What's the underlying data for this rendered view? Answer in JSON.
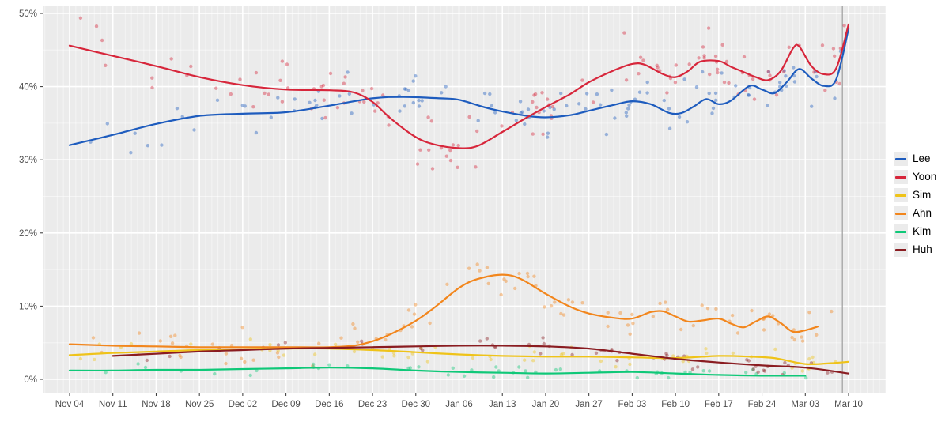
{
  "styles": {
    "background": "#FFFFFF",
    "panel_bg": "#EBEBEB",
    "grid_color": "#FFFFFF",
    "tick_color": "#333333",
    "tick_label_color": "#4D4D4D",
    "event_line_color": "#9B9B9B"
  },
  "legend": {
    "position": "right",
    "items": [
      {
        "label": "Lee",
        "color": "#1E5CBE"
      },
      {
        "label": "Yoon",
        "color": "#D7263B"
      },
      {
        "label": "Sim",
        "color": "#EFC319"
      },
      {
        "label": "Ahn",
        "color": "#F2861D"
      },
      {
        "label": "Kim",
        "color": "#0FC878"
      },
      {
        "label": "Huh",
        "color": "#8A1C21"
      }
    ]
  },
  "chart_data": {
    "type": "line",
    "title": "",
    "xlabel": "",
    "ylabel": "",
    "ylim": [
      0,
      50
    ],
    "grid": true,
    "legend_position": "right",
    "x_axis": {
      "tick_days": [
        0,
        7,
        14,
        21,
        28,
        35,
        42,
        49,
        56,
        63,
        70,
        77,
        84,
        91,
        98,
        105,
        112,
        119,
        126
      ],
      "tick_labels": [
        "Nov 04",
        "Nov 11",
        "Nov 18",
        "Nov 25",
        "Dec 02",
        "Dec 09",
        "Dec 16",
        "Dec 23",
        "Dec 30",
        "Jan 06",
        "Jan 13",
        "Jan 20",
        "Jan 27",
        "Feb 03",
        "Feb 10",
        "Feb 17",
        "Feb 24",
        "Mar 03",
        "Mar 10"
      ]
    },
    "y_axis": {
      "tick_values": [
        0,
        10,
        20,
        30,
        40,
        50
      ],
      "tick_labels": [
        "0%",
        "10%",
        "20%",
        "30%",
        "40%",
        "50%"
      ],
      "minor_values": [
        5,
        15,
        25,
        35,
        45
      ]
    },
    "event_line_day": 125,
    "series": [
      {
        "name": "Lee",
        "color": "#1E5CBE",
        "points": [
          [
            0,
            32.0
          ],
          [
            7,
            33.4
          ],
          [
            14,
            34.9
          ],
          [
            21,
            36.0
          ],
          [
            28,
            36.3
          ],
          [
            35,
            36.5
          ],
          [
            42,
            37.4
          ],
          [
            49,
            38.4
          ],
          [
            54,
            38.6
          ],
          [
            60,
            38.4
          ],
          [
            63,
            38.2
          ],
          [
            67,
            37.2
          ],
          [
            70,
            36.6
          ],
          [
            74,
            36.0
          ],
          [
            77,
            35.8
          ],
          [
            81,
            36.1
          ],
          [
            84,
            36.7
          ],
          [
            88,
            37.5
          ],
          [
            91,
            38.0
          ],
          [
            94,
            37.6
          ],
          [
            97,
            36.4
          ],
          [
            99,
            36.4
          ],
          [
            101,
            37.3
          ],
          [
            103,
            38.3
          ],
          [
            105,
            37.6
          ],
          [
            107,
            38.1
          ],
          [
            110,
            40.1
          ],
          [
            112,
            39.6
          ],
          [
            114,
            39.1
          ],
          [
            116,
            40.6
          ],
          [
            118,
            42.4
          ],
          [
            120,
            41.1
          ],
          [
            122,
            40.1
          ],
          [
            124,
            41.0
          ],
          [
            126,
            47.9
          ]
        ]
      },
      {
        "name": "Yoon",
        "color": "#D7263B",
        "points": [
          [
            0,
            45.6
          ],
          [
            7,
            44.2
          ],
          [
            14,
            42.8
          ],
          [
            21,
            41.3
          ],
          [
            28,
            40.2
          ],
          [
            35,
            39.6
          ],
          [
            42,
            39.5
          ],
          [
            46,
            39.2
          ],
          [
            49,
            37.9
          ],
          [
            52,
            35.6
          ],
          [
            56,
            33.1
          ],
          [
            59,
            32.1
          ],
          [
            63,
            31.6
          ],
          [
            66,
            31.9
          ],
          [
            70,
            33.8
          ],
          [
            74,
            35.8
          ],
          [
            77,
            37.2
          ],
          [
            81,
            39.0
          ],
          [
            84,
            40.6
          ],
          [
            88,
            42.2
          ],
          [
            91,
            43.1
          ],
          [
            93,
            43.0
          ],
          [
            96,
            41.7
          ],
          [
            98,
            41.3
          ],
          [
            100,
            42.1
          ],
          [
            102,
            43.4
          ],
          [
            105,
            43.5
          ],
          [
            107,
            42.7
          ],
          [
            109,
            42.0
          ],
          [
            111,
            41.3
          ],
          [
            113,
            40.9
          ],
          [
            115,
            42.1
          ],
          [
            117,
            45.2
          ],
          [
            118,
            45.5
          ],
          [
            120,
            42.8
          ],
          [
            122,
            41.7
          ],
          [
            124,
            42.5
          ],
          [
            126,
            48.5
          ]
        ]
      },
      {
        "name": "Sim",
        "color": "#EFC319",
        "points": [
          [
            0,
            3.3
          ],
          [
            7,
            3.6
          ],
          [
            14,
            3.8
          ],
          [
            21,
            4.0
          ],
          [
            28,
            4.1
          ],
          [
            35,
            4.2
          ],
          [
            42,
            4.2
          ],
          [
            49,
            4.0
          ],
          [
            56,
            3.7
          ],
          [
            63,
            3.4
          ],
          [
            70,
            3.2
          ],
          [
            77,
            3.1
          ],
          [
            84,
            3.1
          ],
          [
            91,
            3.0
          ],
          [
            98,
            2.9
          ],
          [
            105,
            3.2
          ],
          [
            110,
            3.1
          ],
          [
            114,
            2.9
          ],
          [
            119,
            2.1
          ],
          [
            123,
            2.2
          ],
          [
            126,
            2.4
          ]
        ]
      },
      {
        "name": "Ahn",
        "color": "#F2861D",
        "points": [
          [
            0,
            4.8
          ],
          [
            7,
            4.6
          ],
          [
            14,
            4.5
          ],
          [
            21,
            4.4
          ],
          [
            28,
            4.4
          ],
          [
            35,
            4.4
          ],
          [
            42,
            4.4
          ],
          [
            46,
            4.6
          ],
          [
            49,
            5.2
          ],
          [
            52,
            6.2
          ],
          [
            56,
            8.0
          ],
          [
            59,
            9.8
          ],
          [
            63,
            12.5
          ],
          [
            66,
            13.7
          ],
          [
            70,
            14.3
          ],
          [
            73,
            13.7
          ],
          [
            77,
            11.7
          ],
          [
            81,
            9.9
          ],
          [
            84,
            9.0
          ],
          [
            88,
            8.4
          ],
          [
            91,
            8.3
          ],
          [
            94,
            9.2
          ],
          [
            96,
            9.3
          ],
          [
            98,
            8.6
          ],
          [
            100,
            7.9
          ],
          [
            102,
            8.0
          ],
          [
            105,
            8.3
          ],
          [
            107,
            7.6
          ],
          [
            109,
            7.1
          ],
          [
            111,
            7.9
          ],
          [
            113,
            8.6
          ],
          [
            115,
            7.7
          ],
          [
            117,
            6.5
          ],
          [
            119,
            6.7
          ],
          [
            121,
            7.2
          ]
        ]
      },
      {
        "name": "Kim",
        "color": "#0FC878",
        "points": [
          [
            0,
            1.2
          ],
          [
            7,
            1.2
          ],
          [
            14,
            1.3
          ],
          [
            21,
            1.3
          ],
          [
            28,
            1.4
          ],
          [
            35,
            1.5
          ],
          [
            42,
            1.6
          ],
          [
            49,
            1.5
          ],
          [
            56,
            1.2
          ],
          [
            63,
            1.0
          ],
          [
            70,
            0.9
          ],
          [
            77,
            0.8
          ],
          [
            84,
            0.9
          ],
          [
            91,
            1.0
          ],
          [
            98,
            0.8
          ],
          [
            105,
            0.6
          ],
          [
            112,
            0.5
          ],
          [
            119,
            0.5
          ]
        ]
      },
      {
        "name": "Huh",
        "color": "#8A1C21",
        "points": [
          [
            7,
            3.2
          ],
          [
            14,
            3.5
          ],
          [
            21,
            3.8
          ],
          [
            28,
            4.0
          ],
          [
            35,
            4.2
          ],
          [
            42,
            4.3
          ],
          [
            49,
            4.4
          ],
          [
            56,
            4.5
          ],
          [
            63,
            4.6
          ],
          [
            70,
            4.6
          ],
          [
            77,
            4.5
          ],
          [
            84,
            4.2
          ],
          [
            91,
            3.5
          ],
          [
            98,
            2.8
          ],
          [
            105,
            2.3
          ],
          [
            112,
            1.9
          ],
          [
            119,
            1.6
          ],
          [
            126,
            0.8
          ]
        ]
      }
    ],
    "scatter": {
      "seed": 42,
      "opacity": 0.42,
      "radius": 2.2,
      "day_bias": 0.65,
      "series": {
        "Lee": {
          "count": 115,
          "jitter": 3.2,
          "min_day": 0,
          "max_day": 126,
          "clamp": [
            27,
            50
          ]
        },
        "Yoon": {
          "count": 125,
          "jitter": 3.4,
          "min_day": 0,
          "max_day": 126,
          "clamp": [
            24,
            50
          ]
        },
        "Sim": {
          "count": 60,
          "jitter": 1.1,
          "min_day": 0,
          "max_day": 124,
          "clamp": [
            0.3,
            8
          ]
        },
        "Ahn": {
          "count": 95,
          "jitter": 2.2,
          "min_day": 0,
          "max_day": 124,
          "clamp": [
            0.5,
            20
          ]
        },
        "Kim": {
          "count": 45,
          "jitter": 0.7,
          "min_day": 0,
          "max_day": 122,
          "clamp": [
            0.2,
            4
          ]
        },
        "Huh": {
          "count": 50,
          "jitter": 1.0,
          "min_day": 7,
          "max_day": 124,
          "clamp": [
            0.2,
            7
          ]
        }
      }
    }
  }
}
